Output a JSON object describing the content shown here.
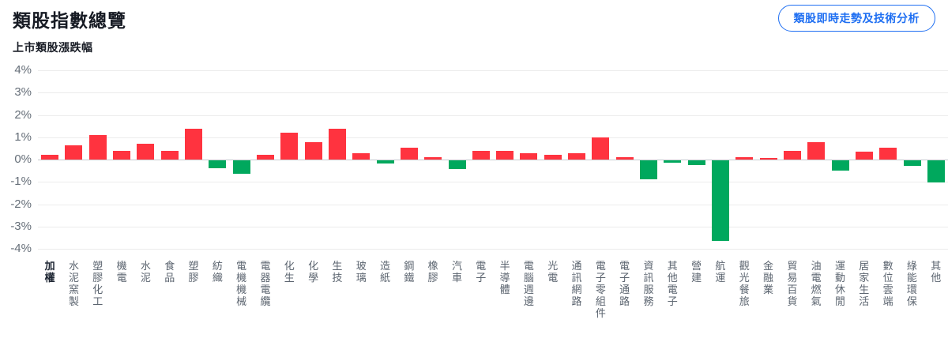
{
  "page": {
    "title": "類股指數總覽",
    "cta_button_label": "類股即時走勢及技術分析",
    "chart_subtitle": "上市類股漲跌幅"
  },
  "colors": {
    "up_bar": "#ff333f",
    "down_bar": "#00a85d",
    "accent_blue": "#1f6ff2",
    "gridline": "#ececec",
    "zero_line": "#c5c9ce",
    "axis_text": "#656e78",
    "category_text": "#5c6570",
    "category_bold_text": "#1e2633",
    "title_text": "#171b24"
  },
  "chart_data": {
    "type": "bar",
    "title": "上市類股漲跌幅",
    "xlabel": "",
    "ylabel": "",
    "ylim": [
      -4,
      4
    ],
    "grid": true,
    "y_ticks": [
      "4%",
      "3%",
      "2%",
      "1%",
      "0%",
      "-1%",
      "-2%",
      "-3%",
      "-4%"
    ],
    "unit": "%",
    "categories": [
      "加權",
      "水泥窯製",
      "塑膠化工",
      "機電",
      "水泥",
      "食品",
      "塑膠",
      "紡織",
      "電機機械",
      "電器電纜",
      "化生",
      "化學",
      "生技",
      "玻璃",
      "造紙",
      "鋼鐵",
      "橡膠",
      "汽車",
      "電子",
      "半導體",
      "電腦週邊",
      "光電",
      "通訊網路",
      "電子零組件",
      "電子通路",
      "資訊服務",
      "其他電子",
      "營建",
      "航運",
      "觀光餐旅",
      "金融業",
      "貿易百貨",
      "油電燃氣",
      "運動休閒",
      "居家生活",
      "數位雲端",
      "綠能環保",
      "其他"
    ],
    "values": [
      0.2,
      0.65,
      1.1,
      0.4,
      0.7,
      0.4,
      1.4,
      -0.35,
      -0.6,
      0.2,
      1.2,
      0.8,
      1.4,
      0.3,
      -0.15,
      0.55,
      0.1,
      -0.4,
      0.4,
      0.4,
      0.3,
      0.2,
      0.3,
      1.0,
      0.12,
      -0.85,
      -0.1,
      -0.2,
      -3.6,
      0.1,
      0.06,
      0.4,
      0.8,
      -0.45,
      0.35,
      0.55,
      -0.25,
      -1.0
    ],
    "bold_categories": [
      "加權"
    ],
    "positive_color": "#ff333f",
    "negative_color": "#00a85d"
  }
}
